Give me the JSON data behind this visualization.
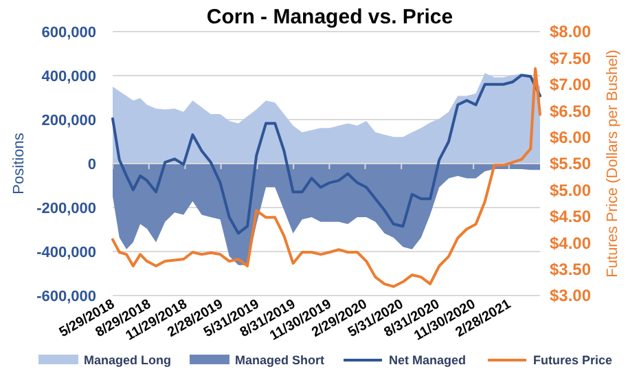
{
  "chart_data": {
    "type": "area",
    "title": "Corn - Managed vs. Price",
    "ylabel": "Positions",
    "y2label": "Futures Price (Dollars per Bushel)",
    "x": [
      "2018-05-29",
      "2018-06-15",
      "2018-07-03",
      "2018-07-20",
      "2018-08-07",
      "2018-08-24",
      "2018-09-16",
      "2018-10-09",
      "2018-11-02",
      "2018-11-25",
      "2018-12-18",
      "2019-01-10",
      "2019-02-02",
      "2019-02-26",
      "2019-03-21",
      "2019-04-13",
      "2019-05-06",
      "2019-05-29",
      "2019-06-22",
      "2019-07-15",
      "2019-08-07",
      "2019-08-30",
      "2019-09-22",
      "2019-10-16",
      "2019-11-08",
      "2019-12-01",
      "2019-12-24",
      "2020-01-16",
      "2020-02-09",
      "2020-03-03",
      "2020-03-26",
      "2020-04-18",
      "2020-05-11",
      "2020-06-04",
      "2020-06-27",
      "2020-07-20",
      "2020-08-12",
      "2020-09-04",
      "2020-09-28",
      "2020-10-21",
      "2020-11-13",
      "2020-12-06",
      "2020-12-29",
      "2021-01-22",
      "2021-02-14",
      "2021-03-09",
      "2021-04-01",
      "2021-04-24",
      "2021-05-18"
    ],
    "series": [
      {
        "name": "Managed Long",
        "color": "#b4c7e7",
        "values": [
          350000,
          329000,
          308000,
          287000,
          298000,
          267000,
          250000,
          246000,
          250000,
          235000,
          287000,
          256000,
          225000,
          225000,
          194000,
          183000,
          215000,
          246000,
          287000,
          277000,
          225000,
          173000,
          142000,
          152000,
          162000,
          162000,
          173000,
          183000,
          173000,
          194000,
          142000,
          131000,
          121000,
          121000,
          142000,
          162000,
          187000,
          204000,
          235000,
          308000,
          308000,
          319000,
          412000,
          392000,
          392000,
          402000,
          408000,
          402000,
          350000
        ]
      },
      {
        "name": "Managed Short",
        "color": "#6c86b8",
        "values": [
          -150000,
          -337000,
          -390000,
          -358000,
          -275000,
          -296000,
          -358000,
          -265000,
          -223000,
          -233000,
          -171000,
          -233000,
          -244000,
          -254000,
          -421000,
          -462000,
          -462000,
          -275000,
          -108000,
          -108000,
          -212000,
          -317000,
          -254000,
          -244000,
          -265000,
          -265000,
          -265000,
          -275000,
          -244000,
          -244000,
          -265000,
          -317000,
          -337000,
          -379000,
          -390000,
          -337000,
          -233000,
          -108000,
          -67000,
          -56000,
          -67000,
          -67000,
          -35000,
          -25000,
          -25000,
          -25000,
          -25000,
          -29000,
          -29000
        ]
      },
      {
        "name": "Net Managed",
        "type": "line",
        "color": "#2f5597",
        "values": [
          204000,
          17000,
          -56000,
          -119000,
          -56000,
          -77000,
          -129000,
          6000,
          21000,
          -4000,
          131000,
          58000,
          6000,
          -87000,
          -244000,
          -317000,
          -285000,
          37000,
          183000,
          183000,
          58000,
          -129000,
          -129000,
          -67000,
          -108000,
          -87000,
          -77000,
          -46000,
          -87000,
          -108000,
          -160000,
          -212000,
          -275000,
          -285000,
          -140000,
          -160000,
          -160000,
          17000,
          100000,
          267000,
          287000,
          267000,
          360000,
          360000,
          360000,
          371000,
          402000,
          396000,
          308000
        ]
      },
      {
        "name": "Futures Price",
        "type": "line",
        "axis": "y2",
        "color": "#ed7d31",
        "x": [
          "2018-05-29",
          "2018-06-15",
          "2018-07-03",
          "2018-07-20",
          "2018-08-07",
          "2018-08-24",
          "2018-09-16",
          "2018-10-09",
          "2018-11-02",
          "2018-11-25",
          "2018-12-18",
          "2019-01-10",
          "2019-02-02",
          "2019-02-26",
          "2019-03-21",
          "2019-04-13",
          "2019-05-06",
          "2019-05-29",
          "2019-06-22",
          "2019-07-15",
          "2019-08-07",
          "2019-08-30",
          "2019-09-22",
          "2019-10-16",
          "2019-11-08",
          "2019-12-01",
          "2019-12-24",
          "2020-01-16",
          "2020-02-09",
          "2020-03-03",
          "2020-03-26",
          "2020-04-18",
          "2020-05-11",
          "2020-06-04",
          "2020-06-27",
          "2020-07-20",
          "2020-08-12",
          "2020-09-04",
          "2020-09-28",
          "2020-10-21",
          "2020-11-13",
          "2020-12-06",
          "2020-12-29",
          "2021-01-22",
          "2021-02-14",
          "2021-03-09",
          "2021-04-01",
          "2021-04-24",
          "2021-05-06",
          "2021-05-18"
        ],
        "values": [
          4.06,
          3.82,
          3.78,
          3.56,
          3.78,
          3.65,
          3.56,
          3.65,
          3.67,
          3.69,
          3.82,
          3.78,
          3.81,
          3.78,
          3.65,
          3.69,
          3.56,
          4.61,
          4.48,
          4.48,
          4.13,
          3.61,
          3.82,
          3.82,
          3.78,
          3.82,
          3.87,
          3.82,
          3.82,
          3.65,
          3.35,
          3.22,
          3.17,
          3.26,
          3.39,
          3.35,
          3.22,
          3.56,
          3.74,
          4.09,
          4.26,
          4.35,
          4.78,
          5.47,
          5.47,
          5.52,
          5.58,
          5.78,
          7.3,
          6.43
        ]
      }
    ],
    "xlim": [
      "2018-05-29",
      "2021-05-18"
    ],
    "xticks": [
      {
        "value": "2018-05-29",
        "label": "5/29/2018"
      },
      {
        "value": "2018-08-29",
        "label": "8/29/2018"
      },
      {
        "value": "2018-11-29",
        "label": "11/29/2018"
      },
      {
        "value": "2019-02-28",
        "label": "2/28/2019"
      },
      {
        "value": "2019-05-31",
        "label": "5/31/2019"
      },
      {
        "value": "2019-08-31",
        "label": "8/31/2019"
      },
      {
        "value": "2019-11-30",
        "label": "11/30/2019"
      },
      {
        "value": "2020-02-29",
        "label": "2/29/2020"
      },
      {
        "value": "2020-05-31",
        "label": "5/31/2020"
      },
      {
        "value": "2020-08-31",
        "label": "8/31/2020"
      },
      {
        "value": "2020-11-30",
        "label": "11/30/2020"
      },
      {
        "value": "2021-02-28",
        "label": "2/28/2021"
      }
    ],
    "ylim": [
      -600000,
      600000
    ],
    "yticks": [
      {
        "value": -600000,
        "label": "-600,000"
      },
      {
        "value": -400000,
        "label": "-400,000"
      },
      {
        "value": -200000,
        "label": "-200,000"
      },
      0,
      {
        "value": 200000,
        "label": "200,000"
      },
      {
        "value": 400000,
        "label": "400,000"
      },
      {
        "value": 600000,
        "label": "600,000"
      }
    ],
    "y2lim": [
      3,
      8
    ],
    "y2ticks": [
      {
        "value": 3,
        "label": "$3.00"
      },
      {
        "value": 3.5,
        "label": "$3.50"
      },
      {
        "value": 4,
        "label": "$4.00"
      },
      {
        "value": 4.5,
        "label": "$4.50"
      },
      {
        "value": 5,
        "label": "$5.00"
      },
      {
        "value": 5.5,
        "label": "$5.50"
      },
      {
        "value": 6,
        "label": "$6.00"
      },
      {
        "value": 6.5,
        "label": "$6.50"
      },
      {
        "value": 7,
        "label": "$7.00"
      },
      {
        "value": 7.5,
        "label": "$7.50"
      },
      {
        "value": 8,
        "label": "$8.00"
      }
    ],
    "grid": "y",
    "legend": "bottom",
    "marker": "none",
    "line_style": "solid"
  }
}
